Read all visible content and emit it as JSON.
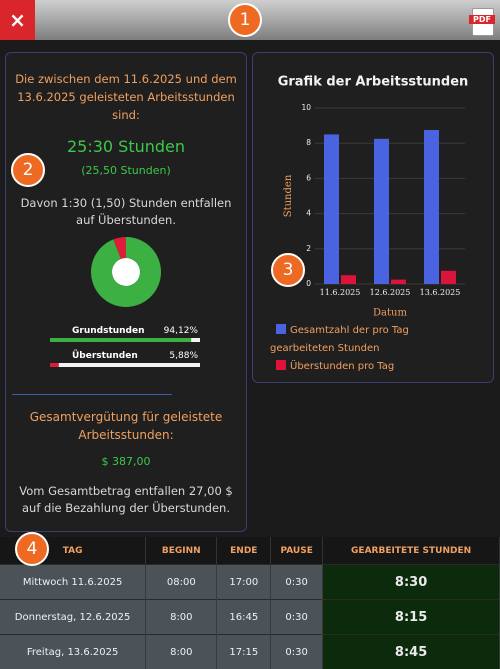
{
  "toolbar": {
    "close": "×",
    "badge": "1",
    "pdf": "PDF"
  },
  "summary": {
    "badge": "2",
    "heading": "Die zwischen dem 11.6.2025 und dem 13.6.2025 geleisteten Arbeitsstunden sind:",
    "total": "25:30 Stunden",
    "total_decimal": "(25,50 Stunden)",
    "overtime_note": "Davon 1:30 (1,50) Stunden entfallen auf Überstunden.",
    "breakdown": [
      {
        "name": "Grundstunden",
        "percent": {
          "value": 94.12,
          "label": "94,12%"
        },
        "color": "#3cb043"
      },
      {
        "name": "Überstunden",
        "percent": {
          "value": 5.88,
          "label": "5,88%"
        },
        "color": "#dc1e3c"
      }
    ],
    "payment_heading": "Gesamtvergütung für geleistete Arbeitsstunden:",
    "payment": "$ 387,00",
    "payment_note": "Vom Gesamtbetrag entfallen 27,00 $ auf die Bezahlung der Überstunden."
  },
  "chart_data": {
    "type": "bar",
    "title": "Grafik der Arbeitsstunden",
    "annotation": "3",
    "categories": [
      "11.6.2025",
      "12.6.2025",
      "13.6.2025"
    ],
    "series": [
      {
        "name": "Gesamtzahl der pro Tag gearbeiteten Stunden",
        "color": "#4a63e0",
        "values": [
          8.5,
          8.25,
          8.75
        ]
      },
      {
        "name": "Überstunden pro Tag",
        "color": "#dc143c",
        "values": [
          0.5,
          0.25,
          0.75
        ]
      }
    ],
    "x_label": "Datum",
    "y_label": "Stunden",
    "ylim": [
      0,
      10
    ],
    "yticks": [
      0,
      2,
      4,
      6,
      8,
      10
    ],
    "grid": true
  },
  "table": {
    "badge": "4",
    "columns": [
      "TAG",
      "BEGINN",
      "ENDE",
      "PAUSE",
      "GEARBEITETE STUNDEN"
    ],
    "rows": [
      [
        "Mittwoch 11.6.2025",
        "08:00",
        "17:00",
        "0:30",
        "8:30"
      ],
      [
        "Donnerstag, 12.6.2025",
        "8:00",
        "16:45",
        "0:30",
        "8:15"
      ],
      [
        "Freitag, 13.6.2025",
        "8:00",
        "17:15",
        "0:30",
        "8:45"
      ]
    ]
  }
}
